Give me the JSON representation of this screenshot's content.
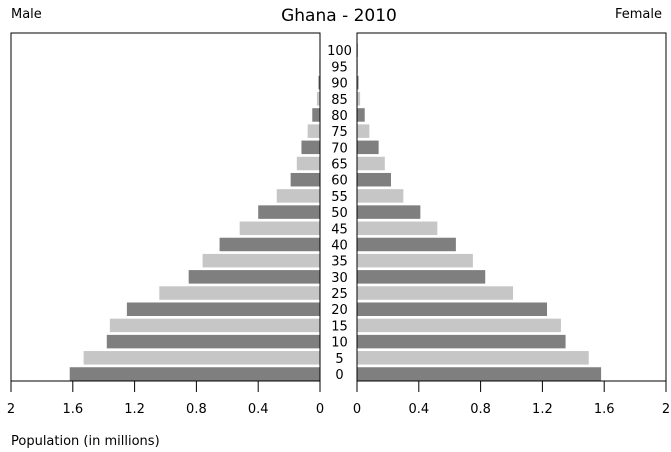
{
  "chart_data": {
    "type": "bar",
    "title": "Ghana - 2010",
    "left_label": "Male",
    "right_label": "Female",
    "xlabel": "Population (in millions)",
    "xlim": [
      0,
      2
    ],
    "x_ticks": [
      0,
      0.4,
      0.8,
      1.2,
      1.6,
      2
    ],
    "x_tick_labels_left": [
      "0",
      "0.4",
      "0.8",
      "1.2",
      "1.6",
      "2"
    ],
    "x_tick_labels_right": [
      "0",
      "0.4",
      "0.8",
      "1.2",
      "1.6",
      "2"
    ],
    "categories": [
      "0",
      "5",
      "10",
      "15",
      "20",
      "25",
      "30",
      "35",
      "40",
      "45",
      "50",
      "55",
      "60",
      "65",
      "70",
      "75",
      "80",
      "85",
      "90",
      "95",
      "100"
    ],
    "series": [
      {
        "name": "Male",
        "values": [
          1.62,
          1.53,
          1.38,
          1.36,
          1.25,
          1.04,
          0.85,
          0.76,
          0.65,
          0.52,
          0.4,
          0.28,
          0.19,
          0.15,
          0.12,
          0.08,
          0.05,
          0.02,
          0.01,
          0.005,
          0.003
        ]
      },
      {
        "name": "Female",
        "values": [
          1.58,
          1.5,
          1.35,
          1.32,
          1.23,
          1.01,
          0.83,
          0.75,
          0.64,
          0.52,
          0.41,
          0.3,
          0.22,
          0.18,
          0.14,
          0.08,
          0.05,
          0.02,
          0.01,
          0.005,
          0.003
        ]
      }
    ],
    "colors": {
      "dark": "#7f7f7f",
      "light": "#c6c6c6"
    }
  }
}
